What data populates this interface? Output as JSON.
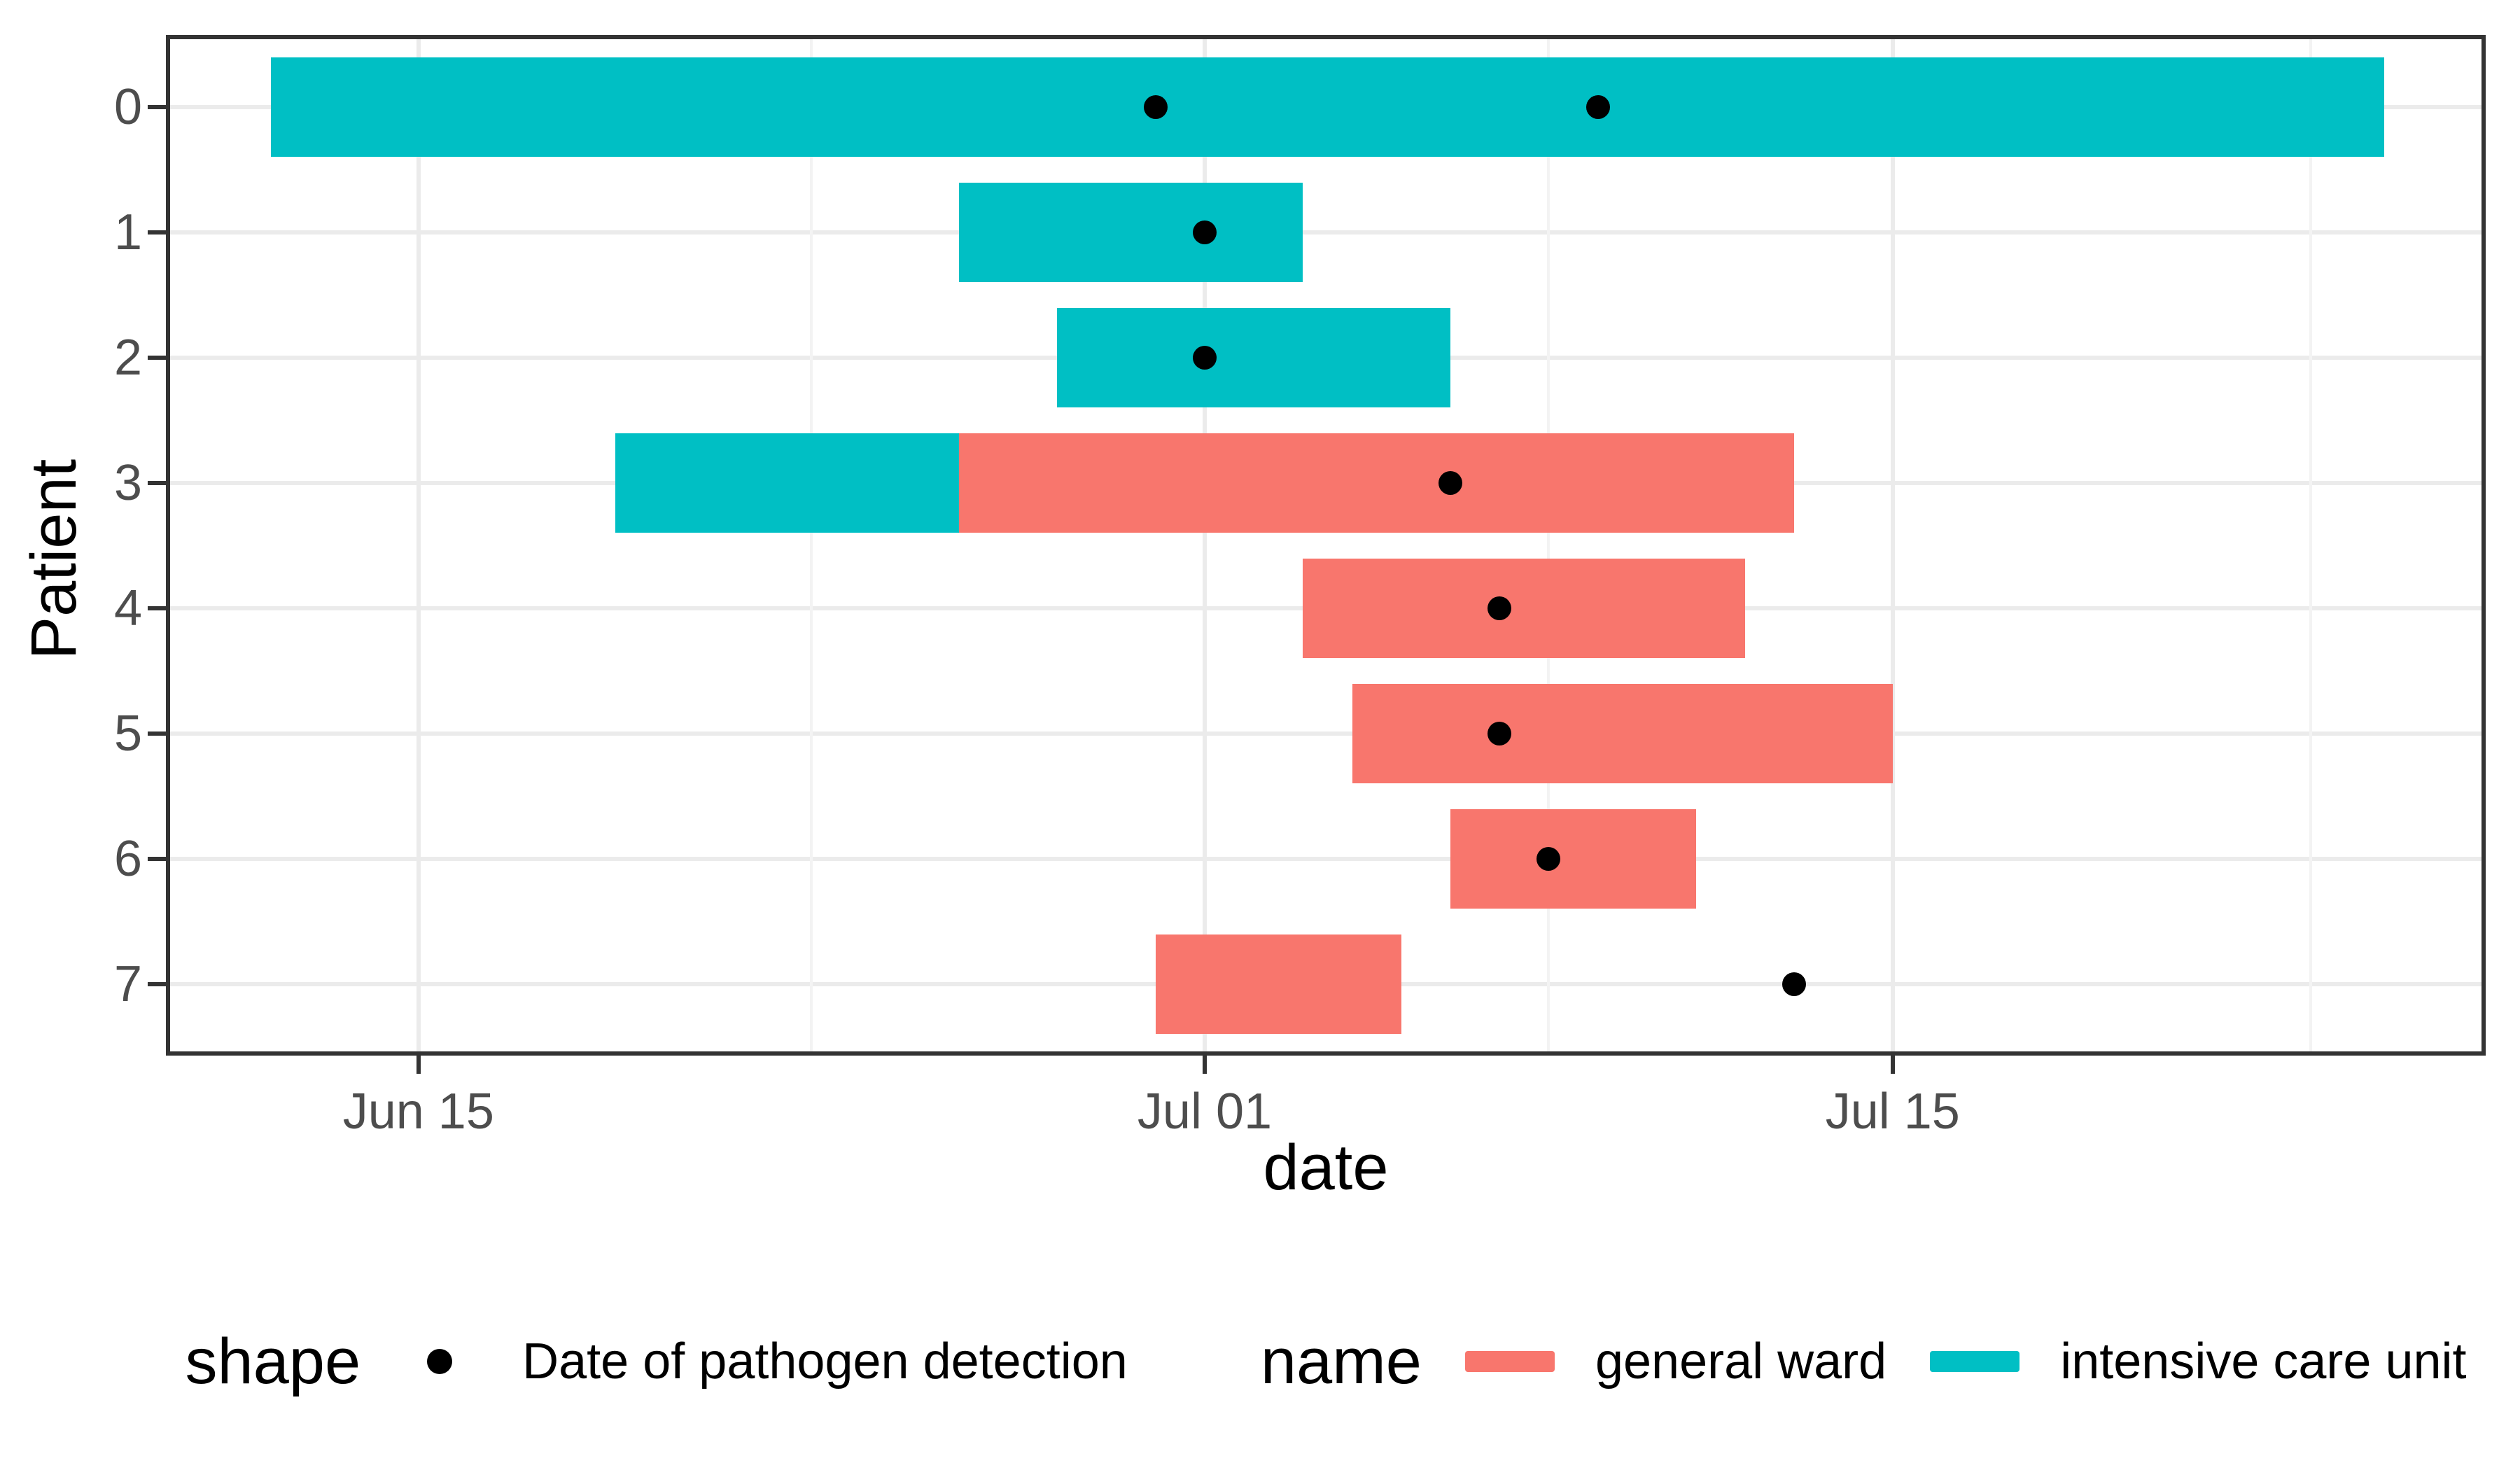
{
  "axes": {
    "x_title": "date",
    "y_title": "Patient"
  },
  "chart_data": {
    "type": "bar",
    "subtype": "horizontal-gantt-date-ranges",
    "title": "",
    "xlabel": "date",
    "ylabel": "Patient",
    "categories": [
      "0",
      "1",
      "2",
      "3",
      "4",
      "5",
      "6",
      "7"
    ],
    "x_ticks": [
      {
        "label": "Jun 15",
        "date": "Jun 15"
      },
      {
        "label": "Jul 01",
        "date": "Jul 1"
      },
      {
        "label": "Jul 15",
        "date": "Jul 15"
      }
    ],
    "x_minor_gridline_dates": [
      "Jun 23",
      "Jul 8",
      "Jul 23.5"
    ],
    "x_range": {
      "start": "Jun 10",
      "end": "Jul 27"
    },
    "grid": "major and minor vertical, major horizontal",
    "legend_position": "bottom",
    "series": [
      {
        "name": "intensive care unit",
        "color": "#00BFC4",
        "stays": [
          {
            "patient": "0",
            "start": "Jun 12",
            "end": "Jul 25"
          },
          {
            "patient": "1",
            "start": "Jun 26",
            "end": "Jul 3"
          },
          {
            "patient": "2",
            "start": "Jun 28",
            "end": "Jul 6"
          },
          {
            "patient": "3",
            "start": "Jun 19",
            "end": "Jun 26"
          }
        ]
      },
      {
        "name": "general ward",
        "color": "#F8766D",
        "stays": [
          {
            "patient": "3",
            "start": "Jun 26",
            "end": "Jul 13"
          },
          {
            "patient": "4",
            "start": "Jul 3",
            "end": "Jul 12"
          },
          {
            "patient": "5",
            "start": "Jul 4",
            "end": "Jul 15"
          },
          {
            "patient": "6",
            "start": "Jul 6",
            "end": "Jul 11"
          },
          {
            "patient": "7",
            "start": "Jun 30",
            "end": "Jul 5"
          }
        ]
      }
    ],
    "detections": {
      "name": "Date of pathogen detection",
      "color": "#000000",
      "points": [
        {
          "patient": "0",
          "date": "Jun 30"
        },
        {
          "patient": "0",
          "date": "Jul 9"
        },
        {
          "patient": "1",
          "date": "Jul 1"
        },
        {
          "patient": "2",
          "date": "Jul 1"
        },
        {
          "patient": "3",
          "date": "Jul 6"
        },
        {
          "patient": "4",
          "date": "Jul 7"
        },
        {
          "patient": "5",
          "date": "Jul 7"
        },
        {
          "patient": "6",
          "date": "Jul 8"
        },
        {
          "patient": "7",
          "date": "Jul 13"
        }
      ]
    }
  },
  "legend": {
    "shape_title": "shape",
    "shape_item_label": "Date of pathogen detection",
    "name_title": "name",
    "name_items": [
      {
        "label": "general ward",
        "color": "#F8766D"
      },
      {
        "label": "intensive care unit",
        "color": "#00BFC4"
      }
    ]
  },
  "colors": {
    "background": "#FFFFFF",
    "panel_border": "#333333",
    "grid_major": "#EBEBEB",
    "grid_minor": "#F3F3F3",
    "tick_label": "#4D4D4D",
    "text": "#000000",
    "general_ward": "#F8766D",
    "intensive_care_unit": "#00BFC4",
    "detection_dot": "#000000"
  }
}
